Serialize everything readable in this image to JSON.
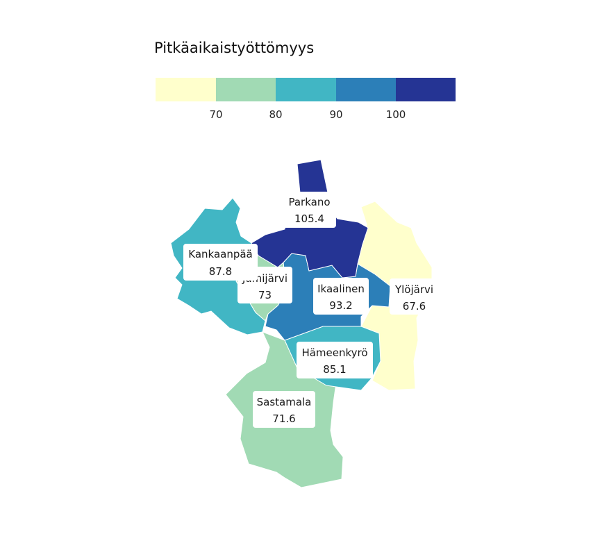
{
  "legend": {
    "title": "Pitkäaikaistyöttömyys",
    "ticks": [
      "70",
      "80",
      "90",
      "100"
    ],
    "colors": [
      "#ffffcc",
      "#a1dab4",
      "#41b6c4",
      "#2c7fb8",
      "#253494"
    ]
  },
  "regions": [
    {
      "id": "parkano",
      "name": "Parkano",
      "value": "105.4",
      "color": "#253494"
    },
    {
      "id": "kankaanpaa",
      "name": "Kankaanpää",
      "value": "87.8",
      "color": "#41b6c4"
    },
    {
      "id": "jamijarvi",
      "name": "Jämijärvi",
      "value": "73",
      "color": "#a1dab4"
    },
    {
      "id": "ikaalinen",
      "name": "Ikaalinen",
      "value": "93.2",
      "color": "#2c7fb8"
    },
    {
      "id": "ylojarvi",
      "name": "Ylöjärvi",
      "value": "67.6",
      "color": "#ffffcc"
    },
    {
      "id": "hameenkyro",
      "name": "Hämeenkyrö",
      "value": "85.1",
      "color": "#41b6c4"
    },
    {
      "id": "sastamala",
      "name": "Sastamala",
      "value": "71.6",
      "color": "#a1dab4"
    }
  ]
}
